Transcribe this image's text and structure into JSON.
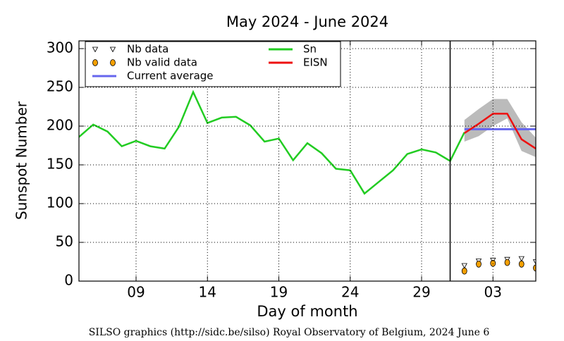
{
  "chart_data": {
    "type": "line",
    "title": "May 2024 - June 2024",
    "x_label": "Day of month",
    "y_label": "Sunspot Number",
    "footer": "SILSO graphics (http://sidc.be/silso) Royal Observatory of Belgium, 2024 June 6",
    "xlim": [
      5,
      37
    ],
    "ylim": [
      0,
      310
    ],
    "xticks": [
      {
        "value": 9,
        "label": "09"
      },
      14,
      19,
      24,
      29,
      {
        "value": 34,
        "label": "03"
      }
    ],
    "yticks": [
      0,
      50,
      100,
      150,
      200,
      250,
      300
    ],
    "grid": true,
    "divider_x": 31,
    "legend": "upper left",
    "band": {
      "color": "#bbbbbb",
      "x": [
        32,
        33,
        34,
        35,
        36,
        37
      ],
      "upper": [
        208,
        222,
        235,
        235,
        205,
        185
      ],
      "lower": [
        180,
        187,
        200,
        210,
        168,
        160
      ]
    },
    "series": [
      {
        "name": "Nb data",
        "marker": "triangle",
        "color": "#ffffff",
        "x": [
          32,
          33,
          34,
          35,
          36,
          37
        ],
        "values": [
          20,
          26,
          27,
          28,
          29,
          25
        ]
      },
      {
        "name": "Nb valid data",
        "marker": "circle",
        "color": "#f5a000",
        "x": [
          32,
          33,
          34,
          35,
          36,
          37
        ],
        "values": [
          13,
          22,
          23,
          24,
          22,
          17
        ]
      },
      {
        "name": "Current average",
        "color": "#6666ee",
        "x": [
          32,
          37
        ],
        "values": [
          196,
          196
        ]
      },
      {
        "name": "Sn",
        "color": "#22cc22",
        "x": [
          5,
          6,
          7,
          8,
          9,
          10,
          11,
          12,
          13,
          14,
          15,
          16,
          17,
          18,
          19,
          20,
          21,
          22,
          23,
          24,
          25,
          26,
          27,
          28,
          29,
          30,
          31,
          32
        ],
        "values": [
          186,
          202,
          193,
          174,
          181,
          174,
          171,
          199,
          244,
          204,
          211,
          212,
          201,
          180,
          184,
          156,
          178,
          165,
          145,
          143,
          113,
          128,
          143,
          164,
          170,
          166,
          155,
          192
        ]
      },
      {
        "name": "EISN",
        "color": "#ee1111",
        "x": [
          32,
          33,
          34,
          35,
          36,
          37
        ],
        "values": [
          191,
          203,
          216,
          216,
          183,
          171
        ]
      }
    ]
  }
}
